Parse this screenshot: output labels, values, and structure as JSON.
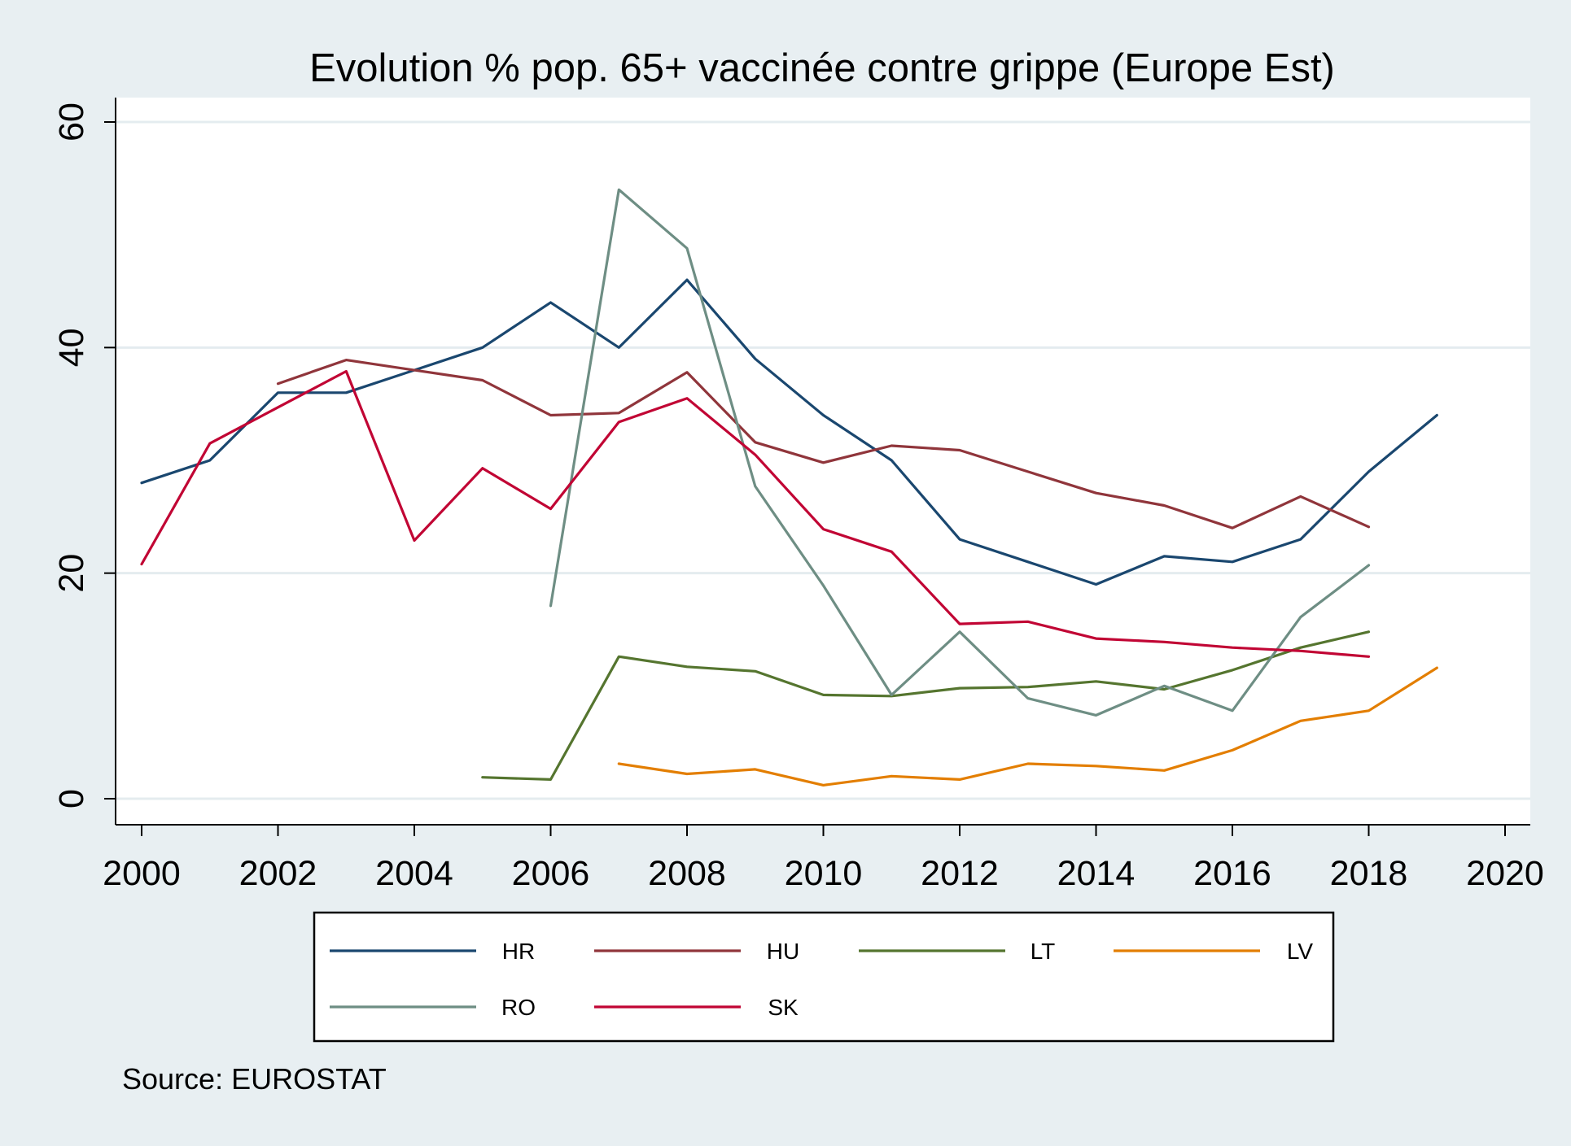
{
  "chart_data": {
    "type": "line",
    "title": "Evolution % pop. 65+ vaccinée contre grippe (Europe Est)",
    "xlabel": "",
    "ylabel": "",
    "xlim": [
      2000,
      2020
    ],
    "ylim": [
      0,
      60
    ],
    "x_ticks": [
      2000,
      2002,
      2004,
      2006,
      2008,
      2010,
      2012,
      2014,
      2016,
      2018,
      2020
    ],
    "y_ticks": [
      0,
      20,
      40,
      60
    ],
    "grid": true,
    "legend_position": "bottom",
    "source_note": "Source: EUROSTAT",
    "series": [
      {
        "name": "HR",
        "color": "#1a476f",
        "x": [
          2000,
          2001,
          2002,
          2003,
          2004,
          2005,
          2006,
          2007,
          2008,
          2009,
          2010,
          2011,
          2012,
          2013,
          2014,
          2015,
          2016,
          2017,
          2018,
          2019
        ],
        "y": [
          28,
          30,
          36,
          36,
          38,
          40,
          44,
          40,
          46,
          39,
          34,
          30,
          23,
          21,
          19,
          21.5,
          21,
          23,
          29,
          34
        ]
      },
      {
        "name": "HU",
        "color": "#90353b",
        "x": [
          2002,
          2003,
          2004,
          2005,
          2006,
          2007,
          2008,
          2009,
          2010,
          2011,
          2012,
          2013,
          2014,
          2015,
          2016,
          2017,
          2018
        ],
        "y": [
          36.8,
          38.9,
          38,
          37.1,
          34,
          34.2,
          37.8,
          31.6,
          29.8,
          31.3,
          30.9,
          29,
          27.1,
          26,
          24,
          26.8,
          24.1
        ]
      },
      {
        "name": "LT",
        "color": "#55752f",
        "x": [
          2005,
          2006,
          2007,
          2008,
          2009,
          2010,
          2011,
          2012,
          2013,
          2014,
          2015,
          2016,
          2017,
          2018
        ],
        "y": [
          1.9,
          1.7,
          12.6,
          11.7,
          11.3,
          9.2,
          9.1,
          9.8,
          9.9,
          10.4,
          9.7,
          11.4,
          13.4,
          14.8
        ]
      },
      {
        "name": "LV",
        "color": "#e37e00",
        "x": [
          2007,
          2008,
          2009,
          2010,
          2011,
          2012,
          2013,
          2014,
          2015,
          2016,
          2017,
          2018,
          2019
        ],
        "y": [
          3.1,
          2.2,
          2.6,
          1.2,
          2.0,
          1.7,
          3.1,
          2.9,
          2.5,
          4.3,
          6.9,
          7.8,
          11.6
        ]
      },
      {
        "name": "RO",
        "color": "#6e8e84",
        "x": [
          2006,
          2007,
          2008,
          2009,
          2010,
          2011,
          2012,
          2013,
          2014,
          2015,
          2016,
          2017,
          2018
        ],
        "y": [
          17.1,
          54,
          48.8,
          27.7,
          18.9,
          9.2,
          14.8,
          8.9,
          7.4,
          10,
          7.8,
          16.1,
          20.7
        ]
      },
      {
        "name": "SK",
        "color": "#c10534",
        "x": [
          2000,
          2001,
          2002,
          2003,
          2004,
          2005,
          2006,
          2007,
          2008,
          2009,
          2010,
          2011,
          2012,
          2013,
          2014,
          2015,
          2016,
          2017,
          2018
        ],
        "y": [
          20.8,
          31.5,
          34.7,
          37.9,
          22.9,
          29.3,
          25.7,
          33.4,
          35.5,
          30.5,
          23.9,
          21.9,
          15.5,
          15.7,
          14.2,
          13.9,
          13.4,
          13.1,
          12.6
        ]
      }
    ]
  }
}
